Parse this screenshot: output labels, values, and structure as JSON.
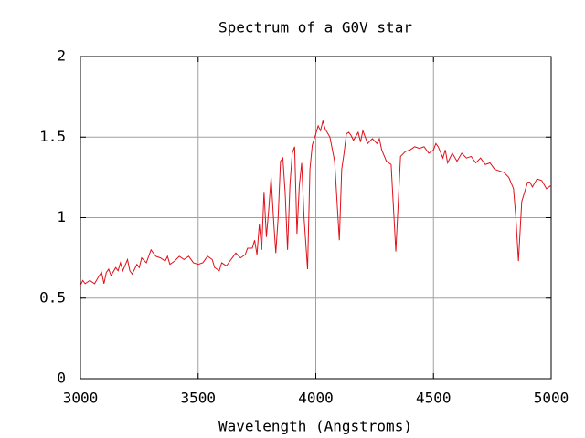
{
  "chart_data": {
    "type": "line",
    "title": "Spectrum of a G0V star",
    "xlabel": "Wavelength (Angstroms)",
    "x": [
      3000,
      3010,
      3020,
      3040,
      3060,
      3080,
      3090,
      3100,
      3110,
      3120,
      3130,
      3150,
      3160,
      3170,
      3180,
      3200,
      3210,
      3220,
      3240,
      3250,
      3260,
      3280,
      3300,
      3320,
      3340,
      3360,
      3370,
      3380,
      3400,
      3420,
      3440,
      3460,
      3480,
      3500,
      3520,
      3540,
      3560,
      3570,
      3590,
      3600,
      3620,
      3640,
      3660,
      3680,
      3700,
      3710,
      3730,
      3740,
      3750,
      3760,
      3770,
      3780,
      3790,
      3800,
      3810,
      3820,
      3830,
      3840,
      3850,
      3860,
      3870,
      3880,
      3890,
      3900,
      3910,
      3920,
      3930,
      3940,
      3950,
      3965,
      3975,
      3985,
      4000,
      4010,
      4020,
      4030,
      4040,
      4060,
      4080,
      4100,
      4110,
      4120,
      4130,
      4140,
      4150,
      4160,
      4180,
      4190,
      4200,
      4220,
      4240,
      4260,
      4270,
      4280,
      4300,
      4320,
      4340,
      4360,
      4380,
      4400,
      4420,
      4440,
      4460,
      4480,
      4500,
      4510,
      4520,
      4540,
      4550,
      4560,
      4580,
      4600,
      4620,
      4640,
      4660,
      4680,
      4700,
      4720,
      4740,
      4760,
      4780,
      4800,
      4820,
      4840,
      4850,
      4861,
      4875,
      4900,
      4910,
      4920,
      4940,
      4960,
      4980,
      5000
    ],
    "values": [
      0.58,
      0.61,
      0.59,
      0.61,
      0.59,
      0.64,
      0.66,
      0.59,
      0.66,
      0.68,
      0.64,
      0.69,
      0.67,
      0.72,
      0.67,
      0.74,
      0.67,
      0.65,
      0.71,
      0.69,
      0.75,
      0.72,
      0.8,
      0.76,
      0.75,
      0.73,
      0.76,
      0.71,
      0.73,
      0.76,
      0.74,
      0.76,
      0.72,
      0.71,
      0.72,
      0.76,
      0.74,
      0.69,
      0.67,
      0.72,
      0.7,
      0.74,
      0.78,
      0.75,
      0.77,
      0.81,
      0.81,
      0.86,
      0.77,
      0.96,
      0.8,
      1.16,
      0.88,
      1.05,
      1.25,
      1.0,
      0.78,
      1.0,
      1.35,
      1.37,
      1.15,
      0.8,
      1.2,
      1.4,
      1.44,
      0.9,
      1.2,
      1.34,
      1.0,
      0.68,
      1.3,
      1.45,
      1.52,
      1.57,
      1.54,
      1.6,
      1.55,
      1.5,
      1.35,
      0.86,
      1.3,
      1.4,
      1.52,
      1.53,
      1.51,
      1.48,
      1.53,
      1.47,
      1.54,
      1.46,
      1.49,
      1.46,
      1.49,
      1.42,
      1.35,
      1.33,
      0.79,
      1.38,
      1.41,
      1.42,
      1.44,
      1.43,
      1.44,
      1.4,
      1.42,
      1.46,
      1.44,
      1.37,
      1.42,
      1.34,
      1.4,
      1.35,
      1.4,
      1.37,
      1.38,
      1.34,
      1.37,
      1.33,
      1.34,
      1.3,
      1.29,
      1.28,
      1.25,
      1.18,
      1.0,
      0.73,
      1.1,
      1.22,
      1.22,
      1.19,
      1.24,
      1.23,
      1.18,
      1.2
    ],
    "color": "#e0101a",
    "xlim": [
      3000,
      5000
    ],
    "ylim": [
      0,
      2
    ],
    "xticks": [
      3000,
      3500,
      4000,
      4500,
      5000
    ],
    "yticks": [
      0,
      0.5,
      1,
      1.5,
      2
    ],
    "grid": true
  }
}
